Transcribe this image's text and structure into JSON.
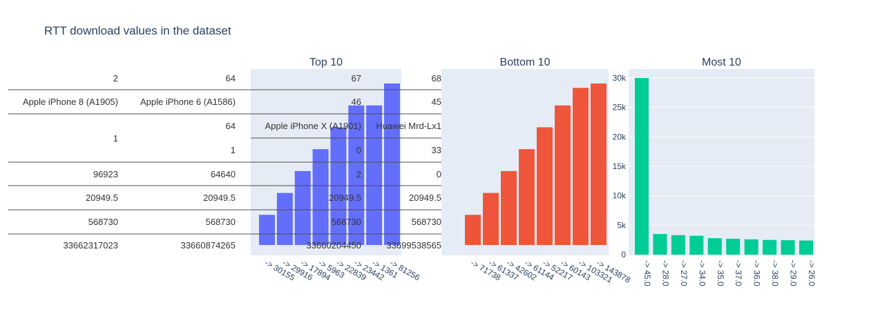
{
  "title": "RTT download values in the dataset",
  "colors": {
    "panel_bg": "#e5ecf6",
    "top": "#636efa",
    "bottom": "#ef553b",
    "most": "#00cc96",
    "text": "#2a3f5f",
    "table_line": "#4d4d4d"
  },
  "table": {
    "rows": [
      [
        "2",
        "64",
        "67",
        "68"
      ],
      [
        "Apple iPhone 8 (A1905)",
        "Apple iPhone 6 (A1586)",
        "46",
        "45"
      ],
      [
        "1",
        "64",
        "Apple iPhone X (A1901)",
        "Huawei Mrd-Lx1"
      ],
      [
        "",
        "1",
        "0",
        "33"
      ],
      [
        "96923",
        "64640",
        "2",
        "0"
      ],
      [
        "20949.5",
        "20949.5",
        "20949.5",
        "20949.5"
      ],
      [
        "568730",
        "568730",
        "568730",
        "568730"
      ],
      [
        "33662317023",
        "33660874265",
        "33660204450",
        "33699538565"
      ]
    ]
  },
  "chart_data": [
    {
      "type": "bar",
      "title": "Top 10",
      "categories": [
        "-> 30155",
        "-> 29916",
        "-> 17894",
        "-> 5963",
        "-> 22839",
        "-> 23442",
        "-> 1361",
        "-> 81256"
      ],
      "values": [
        1,
        2,
        3,
        4,
        5,
        6,
        6,
        7
      ],
      "ylim": [
        0,
        7.3
      ],
      "grid": false
    },
    {
      "type": "bar",
      "title": "Bottom 10",
      "categories": [
        "-> 71738",
        "-> 61337",
        "-> 42602",
        "-> 61144",
        "-> 52217",
        "-> 60143",
        "-> 103321",
        "-> 143878"
      ],
      "values": [
        1,
        2,
        3,
        4,
        5,
        6,
        6.8,
        7
      ],
      "ylim": [
        0,
        7.3
      ],
      "grid": false
    },
    {
      "type": "bar",
      "title": "Most 10",
      "categories": [
        "-> 45.0",
        "-> 28.0",
        "-> 27.0",
        "-> 34.0",
        "-> 35.0",
        "-> 37.0",
        "-> 36.0",
        "-> 38.0",
        "-> 29.0",
        "-> 26.0"
      ],
      "values": [
        30000,
        3500,
        3300,
        3200,
        2800,
        2700,
        2600,
        2500,
        2450,
        2400
      ],
      "yticks": [
        0,
        5000,
        10000,
        15000,
        20000,
        25000,
        30000
      ],
      "ytick_labels": [
        "0",
        "5k",
        "10k",
        "15k",
        "20k",
        "25k",
        "30k"
      ],
      "ylim": [
        0,
        30000
      ],
      "grid": true
    }
  ]
}
